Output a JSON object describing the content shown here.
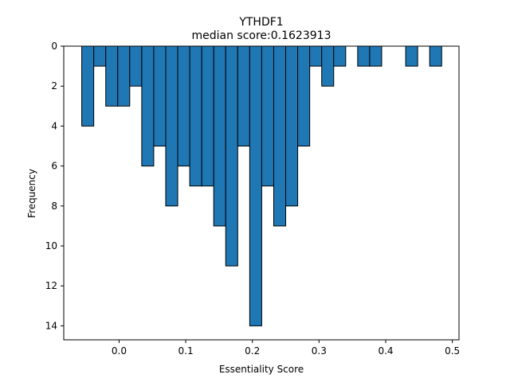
{
  "chart_data": {
    "type": "bar",
    "title": "YTHDF1",
    "subtitle": "median score:0.1623913",
    "xlabel": "Essentiality Score",
    "ylabel": "Frequency",
    "y_inverted": true,
    "xlim": [
      -0.083,
      0.51
    ],
    "ylim": [
      0,
      14.7
    ],
    "bar_color": "#1f77b4",
    "edge_color": "#000000",
    "bin_width": 0.018,
    "bins": [
      {
        "x": -0.047,
        "count": 4
      },
      {
        "x": -0.029,
        "count": 1
      },
      {
        "x": -0.011,
        "count": 3
      },
      {
        "x": 0.007,
        "count": 3
      },
      {
        "x": 0.025,
        "count": 2
      },
      {
        "x": 0.043,
        "count": 6
      },
      {
        "x": 0.061,
        "count": 5
      },
      {
        "x": 0.079,
        "count": 8
      },
      {
        "x": 0.097,
        "count": 6
      },
      {
        "x": 0.115,
        "count": 7
      },
      {
        "x": 0.133,
        "count": 7
      },
      {
        "x": 0.151,
        "count": 9
      },
      {
        "x": 0.169,
        "count": 11
      },
      {
        "x": 0.187,
        "count": 5
      },
      {
        "x": 0.205,
        "count": 14
      },
      {
        "x": 0.223,
        "count": 7
      },
      {
        "x": 0.241,
        "count": 9
      },
      {
        "x": 0.259,
        "count": 8
      },
      {
        "x": 0.277,
        "count": 5
      },
      {
        "x": 0.295,
        "count": 1
      },
      {
        "x": 0.313,
        "count": 2
      },
      {
        "x": 0.331,
        "count": 1
      },
      {
        "x": 0.367,
        "count": 1
      },
      {
        "x": 0.385,
        "count": 1
      },
      {
        "x": 0.439,
        "count": 1
      },
      {
        "x": 0.475,
        "count": 1
      }
    ],
    "x_ticks": [
      {
        "value": 0.0,
        "label": "0.0"
      },
      {
        "value": 0.1,
        "label": "0.1"
      },
      {
        "value": 0.2,
        "label": "0.2"
      },
      {
        "value": 0.3,
        "label": "0.3"
      },
      {
        "value": 0.4,
        "label": "0.4"
      },
      {
        "value": 0.5,
        "label": "0.5"
      }
    ],
    "y_ticks": [
      {
        "value": 0,
        "label": "0"
      },
      {
        "value": 2,
        "label": "2"
      },
      {
        "value": 4,
        "label": "4"
      },
      {
        "value": 6,
        "label": "6"
      },
      {
        "value": 8,
        "label": "8"
      },
      {
        "value": 10,
        "label": "10"
      },
      {
        "value": 12,
        "label": "12"
      },
      {
        "value": 14,
        "label": "14"
      }
    ]
  }
}
